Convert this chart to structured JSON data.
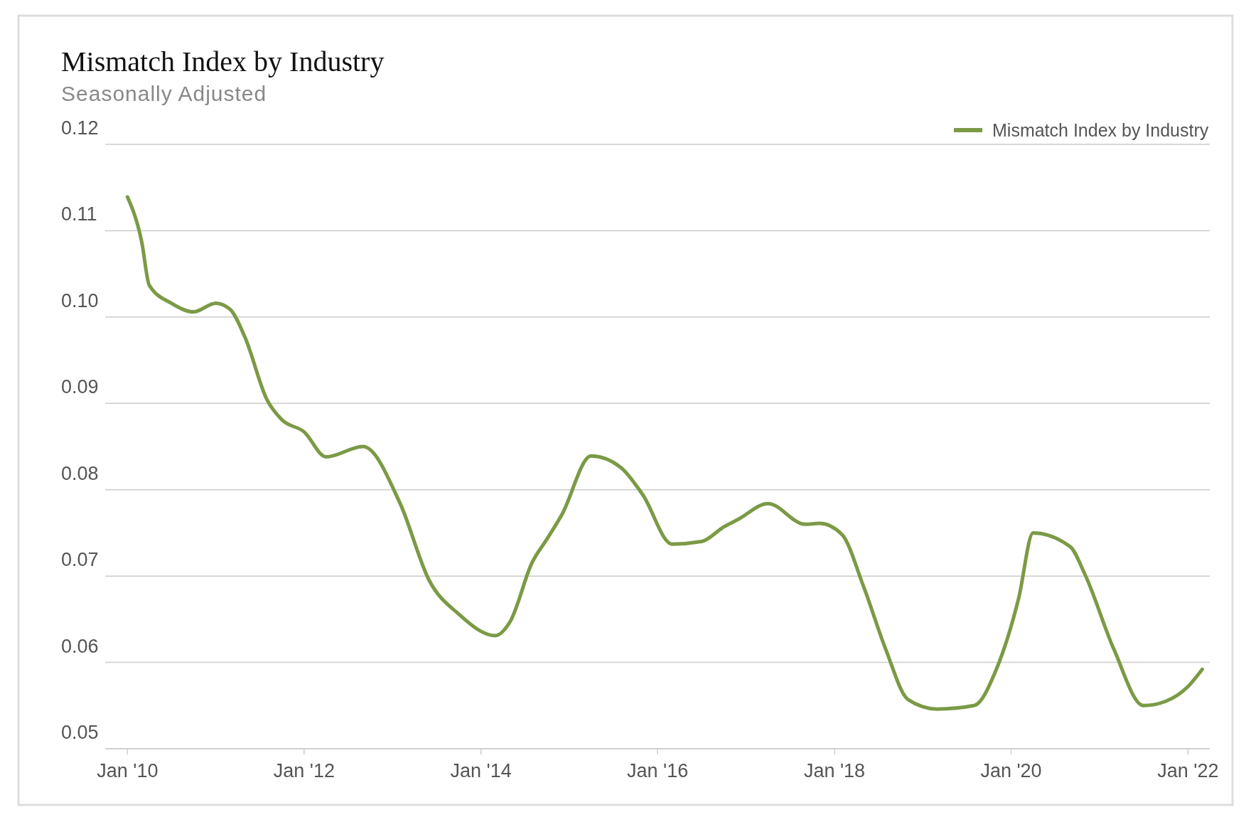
{
  "chart_data": {
    "type": "line",
    "title": "Mismatch Index by Industry",
    "subtitle": "Seasonally Adjusted",
    "x": [
      "2010-01",
      "2010-03",
      "2010-04",
      "2010-07",
      "2010-10",
      "2011-01",
      "2011-03",
      "2011-05",
      "2011-08",
      "2011-10",
      "2012-01",
      "2012-04",
      "2012-09",
      "2013-02",
      "2013-06",
      "2013-10",
      "2014-03",
      "2014-05",
      "2014-08",
      "2014-10",
      "2014-12",
      "2015-04",
      "2015-08",
      "2015-11",
      "2016-03",
      "2016-07",
      "2016-10",
      "2016-12",
      "2017-04",
      "2017-09",
      "2017-11",
      "2018-02",
      "2018-05",
      "2018-08",
      "2018-11",
      "2019-03",
      "2019-08",
      "2019-11",
      "2020-02",
      "2020-04",
      "2020-09",
      "2020-11",
      "2021-03",
      "2021-07",
      "2021-10",
      "2022-01",
      "2022-03"
    ],
    "series": [
      {
        "name": "Mismatch Index by Industry",
        "color": "#7b9a45",
        "values": [
          0.1139,
          0.1087,
          0.1037,
          0.1016,
          0.1006,
          0.1016,
          0.1009,
          0.0977,
          0.0904,
          0.0881,
          0.0867,
          0.0838,
          0.085,
          0.0784,
          0.0695,
          0.0656,
          0.0631,
          0.0647,
          0.0716,
          0.0743,
          0.0771,
          0.0839,
          0.0826,
          0.0794,
          0.0737,
          0.074,
          0.0757,
          0.0766,
          0.0784,
          0.076,
          0.0761,
          0.0748,
          0.0688,
          0.0615,
          0.0557,
          0.0546,
          0.055,
          0.0592,
          0.0674,
          0.075,
          0.0734,
          0.0702,
          0.0615,
          0.055,
          0.0555,
          0.0572,
          0.0592
        ]
      }
    ],
    "xlim": [
      "2009-10",
      "2022-04"
    ],
    "xticks": [
      {
        "value": "2010-01",
        "label": "Jan '10"
      },
      {
        "value": "2012-01",
        "label": "Jan '12"
      },
      {
        "value": "2014-01",
        "label": "Jan '14"
      },
      {
        "value": "2016-01",
        "label": "Jan '16"
      },
      {
        "value": "2018-01",
        "label": "Jan '18"
      },
      {
        "value": "2020-01",
        "label": "Jan '20"
      },
      {
        "value": "2022-01",
        "label": "Jan '22"
      }
    ],
    "ylim": [
      0.05,
      0.12
    ],
    "yticks": [
      0.05,
      0.06,
      0.07,
      0.08,
      0.09,
      {
        "value": 0.1,
        "label": "0.10"
      },
      0.11,
      0.12
    ],
    "grid": "y",
    "legend": "top right",
    "marker": "none",
    "line_style": "solid"
  }
}
